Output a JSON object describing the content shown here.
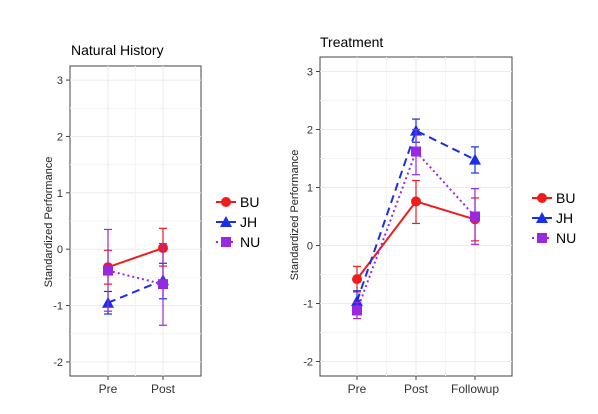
{
  "chart_data": [
    {
      "type": "line",
      "title": "Natural History",
      "xlabel": "",
      "ylabel": "Standardized Performance",
      "categories": [
        "Pre",
        "Post"
      ],
      "ylim": [
        -2.25,
        3.25
      ],
      "yticks": [
        -2,
        -1,
        0,
        1,
        2,
        3
      ],
      "grid": true,
      "legend_position": "right",
      "series": [
        {
          "name": "BU",
          "color": "#ee1c1c",
          "marker": "circle",
          "line_style": "solid",
          "values": [
            -0.32,
            0.02
          ],
          "err_low": [
            -0.62,
            -0.3
          ],
          "err_high": [
            -0.02,
            0.37
          ]
        },
        {
          "name": "JH",
          "color": "#1a2fe6",
          "marker": "triangle",
          "line_style": "dashed",
          "values": [
            -0.95,
            -0.55
          ],
          "err_low": [
            -1.15,
            -0.88
          ],
          "err_high": [
            -0.75,
            -0.25
          ]
        },
        {
          "name": "NU",
          "color": "#9a28e0",
          "marker": "square",
          "line_style": "dotted",
          "values": [
            -0.38,
            -0.62
          ],
          "err_low": [
            -1.1,
            -1.35
          ],
          "err_high": [
            0.35,
            0.1
          ]
        }
      ]
    },
    {
      "type": "line",
      "title": "Treatment",
      "xlabel": "",
      "ylabel": "Standardized Performance",
      "categories": [
        "Pre",
        "Post",
        "Followup"
      ],
      "ylim": [
        -2.25,
        3.25
      ],
      "yticks": [
        -2,
        -1,
        0,
        1,
        2,
        3
      ],
      "grid": true,
      "legend_position": "right",
      "series": [
        {
          "name": "BU",
          "color": "#ee1c1c",
          "marker": "circle",
          "line_style": "solid",
          "values": [
            -0.58,
            0.76,
            0.45
          ],
          "err_low": [
            -0.8,
            0.38,
            0.08
          ],
          "err_high": [
            -0.36,
            1.12,
            0.82
          ]
        },
        {
          "name": "JH",
          "color": "#1a2fe6",
          "marker": "triangle",
          "line_style": "dashed",
          "values": [
            -0.96,
            1.98,
            1.48
          ],
          "err_low": [
            -1.14,
            1.78,
            1.25
          ],
          "err_high": [
            -0.78,
            2.18,
            1.7
          ]
        },
        {
          "name": "NU",
          "color": "#9a28e0",
          "marker": "square",
          "line_style": "dotted",
          "values": [
            -1.12,
            1.62,
            0.5
          ],
          "err_low": [
            -1.26,
            1.22,
            0.02
          ],
          "err_high": [
            -0.98,
            2.0,
            0.98
          ]
        }
      ]
    }
  ]
}
